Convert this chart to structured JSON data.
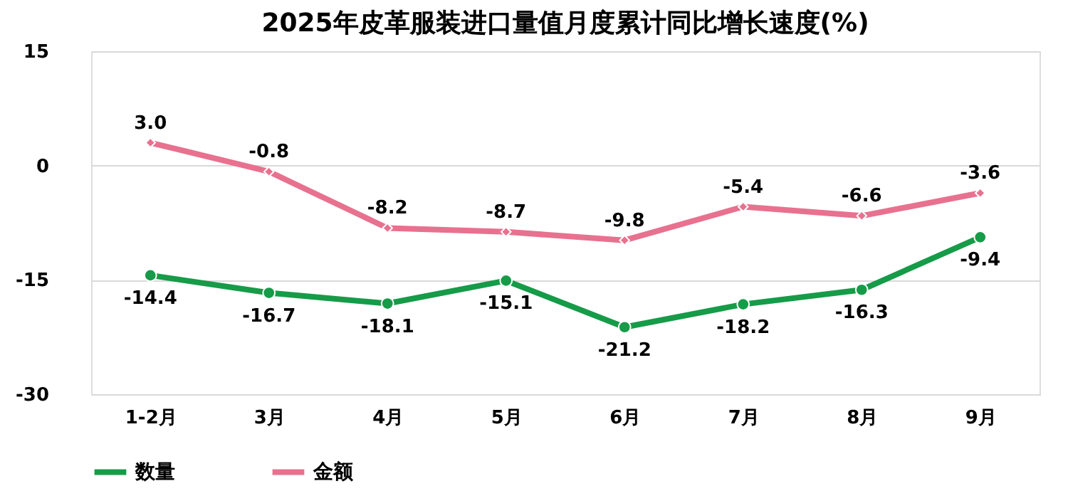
{
  "chart_data": {
    "type": "line",
    "title": "2025年皮革服装进口量值月度累计同比增长速度(%)",
    "categories": [
      "1-2月",
      "3月",
      "4月",
      "5月",
      "6月",
      "7月",
      "8月",
      "9月"
    ],
    "series": [
      {
        "name": "数量",
        "color": "#169b48",
        "marker": "circle",
        "values": [
          -14.4,
          -16.7,
          -18.1,
          -15.1,
          -21.2,
          -18.2,
          -16.3,
          -9.4
        ],
        "value_labels": [
          "-14.4",
          "-16.7",
          "-18.1",
          "-15.1",
          "-21.2",
          "-18.2",
          "-16.3",
          "-9.4"
        ]
      },
      {
        "name": "金额",
        "color": "#e8718f",
        "marker": "diamond",
        "values": [
          3.0,
          -0.8,
          -8.2,
          -8.7,
          -9.8,
          -5.4,
          -6.6,
          -3.6
        ],
        "value_labels": [
          "3.0",
          "-0.8",
          "-8.2",
          "-8.7",
          "-9.8",
          "-5.4",
          "-6.6",
          "-3.6"
        ]
      }
    ],
    "ylim": [
      -30,
      15
    ],
    "yticks": [
      -30,
      -15,
      0,
      15
    ],
    "grid": "y",
    "legend": "bottom",
    "line_style": "solid"
  }
}
